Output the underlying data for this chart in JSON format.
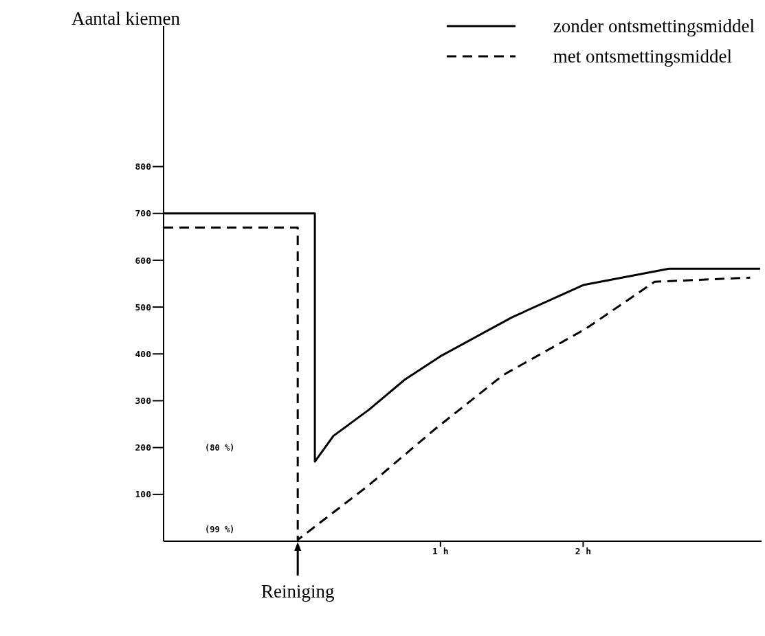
{
  "chart_data": {
    "type": "line",
    "ylabel": "Aantal kiemen",
    "xlim": [
      -0.94,
      3.25
    ],
    "ylim": [
      0,
      1100
    ],
    "xticks": [
      {
        "value": 1,
        "label": "1 h"
      },
      {
        "value": 2,
        "label": "2 h"
      }
    ],
    "yticks": [
      100,
      200,
      300,
      400,
      500,
      600,
      700,
      800
    ],
    "grid": false,
    "legend": "top right",
    "marker": "none",
    "series": [
      {
        "name": "zonder ontsmettingsmiddel",
        "color": "#000000",
        "line_style": "solid",
        "x": [
          -0.94,
          0.12,
          0.12,
          0.25,
          0.5,
          0.75,
          1,
          1.5,
          2,
          2.6,
          3.24
        ],
        "values": [
          700,
          700,
          170,
          225,
          281,
          345,
          395,
          478,
          547,
          582,
          582
        ]
      },
      {
        "name": "met ontsmettingsmiddel",
        "color": "#000000",
        "line_style": "dashed",
        "x": [
          -0.94,
          0,
          0,
          0.5,
          0.96,
          1.44,
          2.02,
          2.5,
          3.17
        ],
        "values": [
          670,
          670,
          3,
          120,
          239,
          355,
          454,
          554,
          563
        ]
      }
    ],
    "annotations": [
      "(80 %)",
      "(99 %)",
      {
        "text": "Reiniging",
        "x": 0,
        "y": 0
      }
    ]
  }
}
